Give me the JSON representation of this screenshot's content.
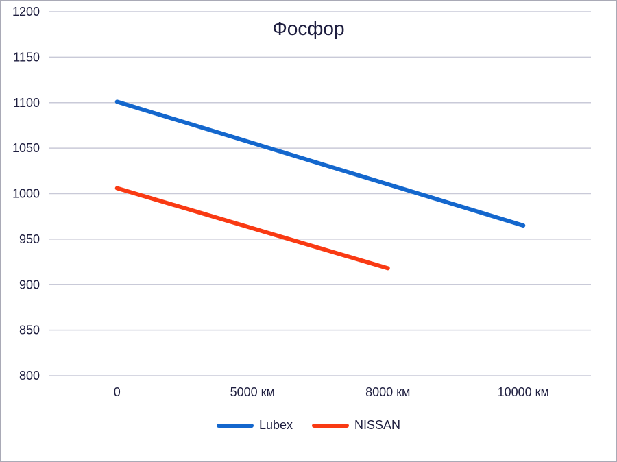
{
  "colors": {
    "text": "#1e1e3f",
    "gridline": "#c9cad8",
    "frame_border": "#a9aab6",
    "background": "#ffffff",
    "series_blue": "#1467cd",
    "series_red": "#f93a13"
  },
  "chart_data": {
    "type": "line",
    "title": "Фосфор",
    "xlabel": "",
    "ylabel": "",
    "categories": [
      "0",
      "5000 км",
      "8000 км",
      "10000 км"
    ],
    "y_ticks": [
      1200,
      1150,
      1100,
      1050,
      1000,
      950,
      900,
      850,
      800
    ],
    "ylim": [
      800,
      1200
    ],
    "grid": "horizontal",
    "legend_position": "bottom",
    "series": [
      {
        "name": "Lubex",
        "color": "#1467cd",
        "values": [
          1101,
          null,
          null,
          965
        ]
      },
      {
        "name": "NISSAN",
        "color": "#f93a13",
        "values": [
          1006,
          null,
          918,
          null
        ]
      }
    ]
  }
}
